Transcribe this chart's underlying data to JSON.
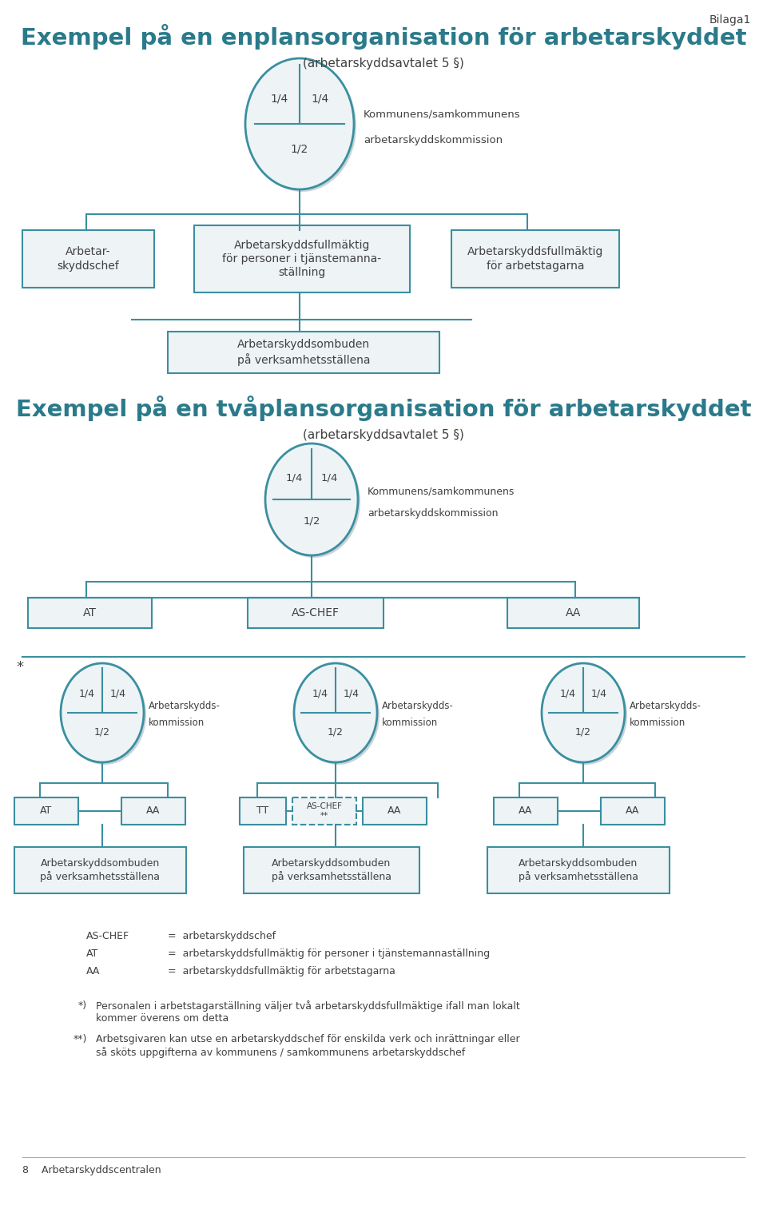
{
  "title1": "Exempel på en enplansorganisation för arbetarskyddet",
  "subtitle1": "(arbetarskyddsavtalet 5 §)",
  "title2": "Exempel på en tvåplansorganisation för arbetarskyddet",
  "subtitle2": "(arbetarskyddsavtalet 5 §)",
  "bilaga": "Bilaga1",
  "teal": "#3a8fa0",
  "light_fill": "#eef3f5",
  "shadow_fill": "#c8d4d8",
  "text_dark": "#404040",
  "box_bg": "#eef3f5",
  "title_color": "#2a7a8a",
  "footer": "8    Arbetarskyddscentralen"
}
